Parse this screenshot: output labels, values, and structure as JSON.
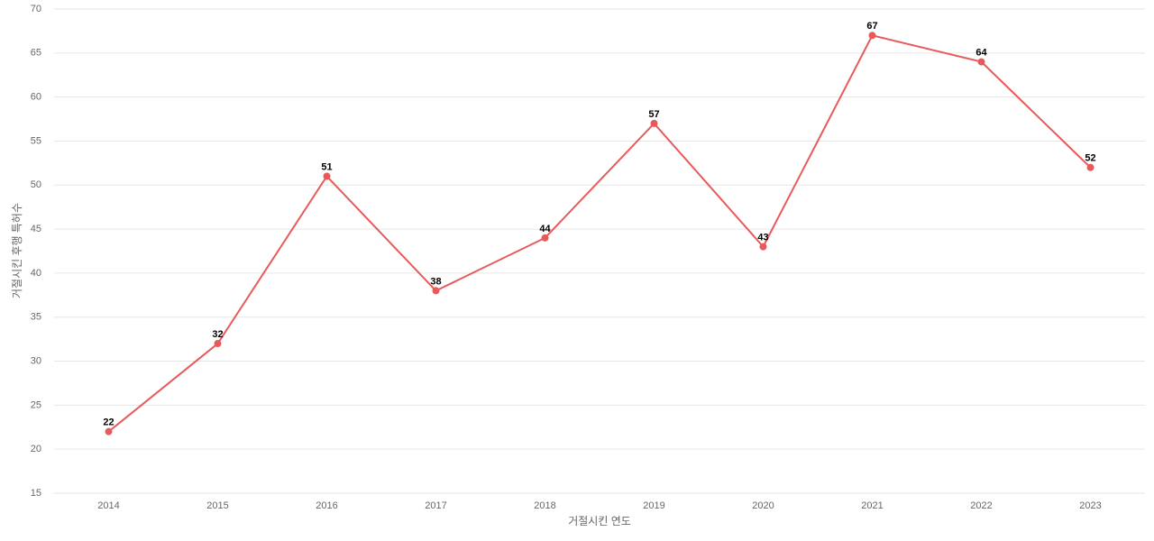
{
  "chart_data": {
    "type": "line",
    "x_label": "거절시킨 연도",
    "y_label": "거절시킨 후행 특허수",
    "categories": [
      "2014",
      "2015",
      "2016",
      "2017",
      "2018",
      "2019",
      "2020",
      "2021",
      "2022",
      "2023"
    ],
    "series": [
      {
        "name": "거절시킨 후행 특허수",
        "color": "#e85a5a",
        "values": [
          22,
          32,
          51,
          38,
          44,
          57,
          43,
          67,
          64,
          52
        ]
      }
    ],
    "ylim": [
      15,
      70
    ],
    "yticks": [
      15,
      20,
      25,
      30,
      35,
      40,
      45,
      50,
      55,
      60,
      65,
      70
    ],
    "grid": true
  }
}
